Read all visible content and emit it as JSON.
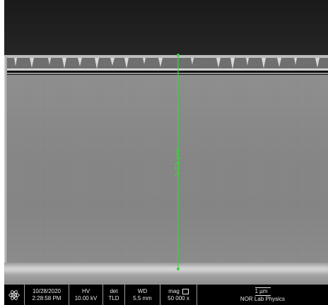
{
  "image": {
    "kind": "SEM cross-section micrograph",
    "measurement": {
      "label": "3.01 µm",
      "color": "#3bd43b"
    }
  },
  "databar": {
    "date": "10/28/2020",
    "time": "2:28:58 PM",
    "hv_label": "HV",
    "hv_value": "10.00 kV",
    "det_label": "det",
    "det_value": "TLD",
    "wd_label": "WD",
    "wd_value": "5.5 mm",
    "mag_label": "mag",
    "mag_value": "50 000 x",
    "scale_label": "1 µm",
    "lab_name": "NOR Lab Physics",
    "logo_icon": "atom-logo-icon"
  }
}
